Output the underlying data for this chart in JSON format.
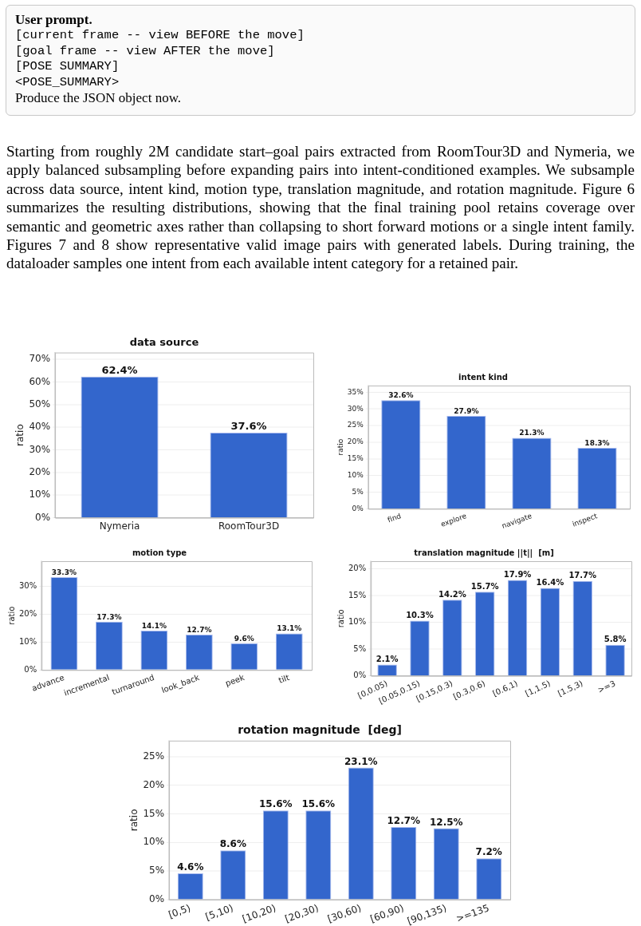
{
  "chart_data": [
    {
      "type": "other",
      "title": "User prompt.",
      "annotations": [
        "[current frame -- view BEFORE the move]",
        "[goal frame -- view AFTER the move]",
        "[POSE SUMMARY]",
        "<POSE_SUMMARY>",
        "Produce the JSON object now."
      ]
    },
    {
      "type": "other",
      "annotations": [
        "Starting from roughly 2M candidate start–goal pairs extracted from RoomTour3D and Nymeria, we apply balanced subsampling before expanding pairs into intent-conditioned examples. We subsample across data source, intent kind, motion type, translation magnitude, and rotation magnitude. Figure 6 summarizes the resulting distributions, showing that the final training pool retains coverage over semantic and geometric axes rather than collapsing to short forward motions or a single intent family. Figures 7 and 8 show representative valid image pairs with generated labels. During training, the dataloader samples one intent from each available intent category for a retained pair."
      ]
    },
    {
      "type": "bar",
      "title": "data source",
      "ylabel": "ratio",
      "categories": [
        "Nymeria",
        "RoomTour3D"
      ],
      "values": [
        62.4,
        37.6
      ],
      "value_labels": [
        "62.4%",
        "37.6%"
      ],
      "color": "#3366cc",
      "ylim": [
        0,
        73
      ],
      "yticks": [
        {
          "value": 0,
          "label": "0%"
        },
        {
          "value": 10,
          "label": "10%"
        },
        {
          "value": 20,
          "label": "20%"
        },
        {
          "value": 30,
          "label": "30%"
        },
        {
          "value": 40,
          "label": "40%"
        },
        {
          "value": 50,
          "label": "50%"
        },
        {
          "value": 60,
          "label": "60%"
        },
        {
          "value": 70,
          "label": "70%"
        }
      ],
      "grid": "y"
    },
    {
      "type": "bar",
      "title": "intent kind",
      "ylabel": "ratio",
      "categories": [
        "find",
        "explore",
        "navigate",
        "inspect"
      ],
      "values": [
        32.6,
        27.9,
        21.3,
        18.3
      ],
      "value_labels": [
        "32.6%",
        "27.9%",
        "21.3%",
        "18.3%"
      ],
      "color": "#3366cc",
      "ylim": [
        0,
        37
      ],
      "yticks": [
        {
          "value": 0,
          "label": "0%"
        },
        {
          "value": 5,
          "label": "5%"
        },
        {
          "value": 10,
          "label": "10%"
        },
        {
          "value": 15,
          "label": "15%"
        },
        {
          "value": 20,
          "label": "20%"
        },
        {
          "value": 25,
          "label": "25%"
        },
        {
          "value": 30,
          "label": "30%"
        },
        {
          "value": 35,
          "label": "35%"
        }
      ],
      "grid": "y"
    },
    {
      "type": "bar",
      "title": "motion type",
      "ylabel": "ratio",
      "categories": [
        "advance",
        "incremental",
        "turnaround",
        "look_back",
        "peek",
        "tilt"
      ],
      "values": [
        33.3,
        17.3,
        14.1,
        12.7,
        9.6,
        13.1
      ],
      "value_labels": [
        "33.3%",
        "17.3%",
        "14.1%",
        "12.7%",
        "9.6%",
        "13.1%"
      ],
      "color": "#3366cc",
      "ylim": [
        0,
        39
      ],
      "yticks": [
        {
          "value": 0,
          "label": "0%"
        },
        {
          "value": 10,
          "label": "10%"
        },
        {
          "value": 20,
          "label": "20%"
        },
        {
          "value": 30,
          "label": "30%"
        }
      ],
      "grid": "y"
    },
    {
      "type": "bar",
      "title": "translation magnitude ||t||  [m]",
      "ylabel": "ratio",
      "categories": [
        "[0,0.05)",
        "[0.05,0.15)",
        "[0.15,0.3)",
        "[0.3,0.6)",
        "[0.6,1)",
        "[1,1.5)",
        "[1.5,3)",
        ">=3"
      ],
      "values": [
        2.1,
        10.3,
        14.2,
        15.7,
        17.9,
        16.4,
        17.7,
        5.8
      ],
      "value_labels": [
        "2.1%",
        "10.3%",
        "14.2%",
        "15.7%",
        "17.9%",
        "16.4%",
        "17.7%",
        "5.8%"
      ],
      "color": "#3366cc",
      "ylim": [
        0,
        21.4
      ],
      "yticks": [
        {
          "value": 0,
          "label": "0%"
        },
        {
          "value": 5,
          "label": "5%"
        },
        {
          "value": 10,
          "label": "10%"
        },
        {
          "value": 15,
          "label": "15%"
        },
        {
          "value": 20,
          "label": "20%"
        }
      ],
      "grid": "y"
    },
    {
      "type": "bar",
      "title": "rotation magnitude  [deg]",
      "ylabel": "ratio",
      "categories": [
        "[0,5)",
        "[5,10)",
        "[10,20)",
        "[20,30)",
        "[30,60)",
        "[60,90)",
        "[90,135)",
        ">=135"
      ],
      "values": [
        4.6,
        8.6,
        15.6,
        15.6,
        23.1,
        12.7,
        12.5,
        7.2
      ],
      "value_labels": [
        "4.6%",
        "8.6%",
        "15.6%",
        "15.6%",
        "23.1%",
        "12.7%",
        "12.5%",
        "7.2%"
      ],
      "color": "#3366cc",
      "ylim": [
        0,
        27.8
      ],
      "yticks": [
        {
          "value": 0,
          "label": "0%"
        },
        {
          "value": 5,
          "label": "5%"
        },
        {
          "value": 10,
          "label": "10%"
        },
        {
          "value": 15,
          "label": "15%"
        },
        {
          "value": 20,
          "label": "20%"
        },
        {
          "value": 25,
          "label": "25%"
        }
      ],
      "grid": "y"
    }
  ]
}
